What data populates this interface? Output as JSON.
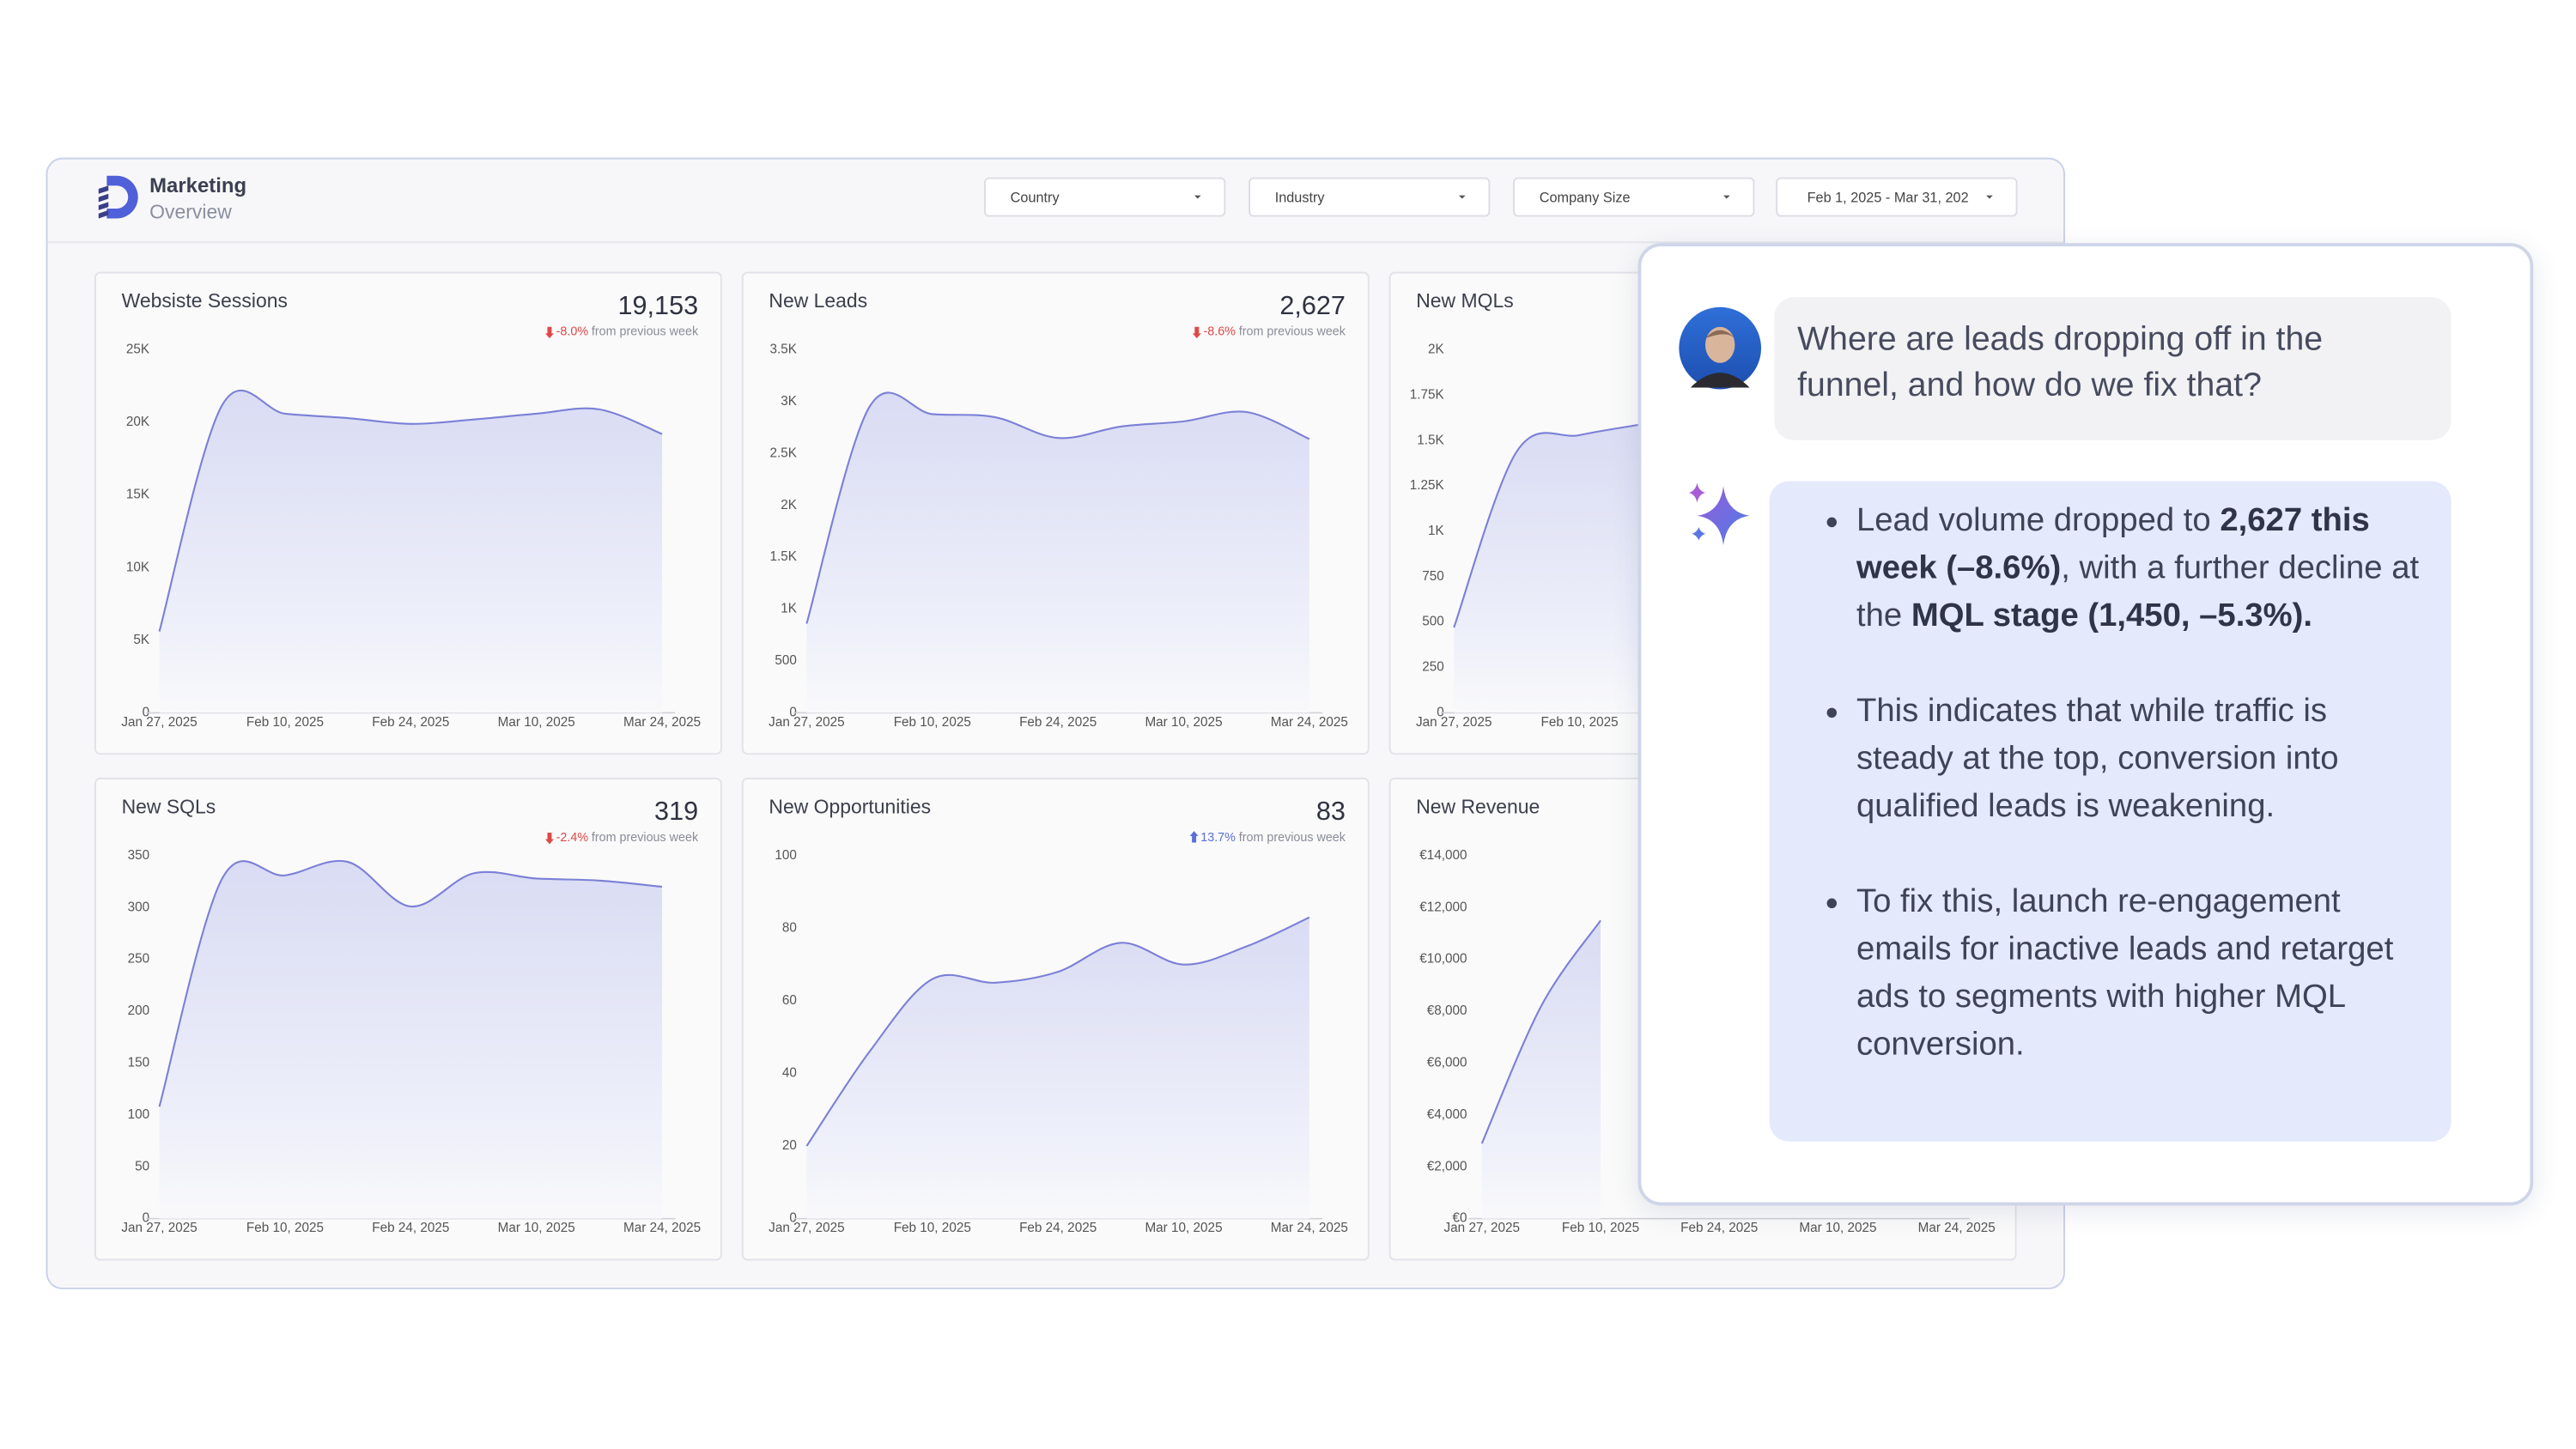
{
  "header": {
    "title": "Marketing",
    "subtitle": "Overview"
  },
  "filters": [
    "Country",
    "Industry",
    "Company Size",
    "Feb 1, 2025 - Mar 31, 202"
  ],
  "chart_data": [
    {
      "type": "line",
      "title": "Websiste Sessions",
      "kpi": {
        "value": 19153,
        "label": "19,153"
      },
      "delta": {
        "value": -8.0,
        "label": "-8.0%"
      },
      "delta_note": "from previous week",
      "categories": [
        "Jan 27, 2025",
        null,
        "Feb 10, 2025",
        null,
        "Feb 24, 2025",
        null,
        "Mar 10, 2025",
        null,
        "Mar 24, 2025"
      ],
      "values": [
        5600,
        21200,
        20600,
        20300,
        19900,
        20200,
        20600,
        20900,
        19200
      ],
      "color": "#7b80d6",
      "ylim": [
        0,
        25000
      ],
      "yticks": [
        0,
        {
          "value": 5000,
          "label": "5K"
        },
        {
          "value": 10000,
          "label": "10K"
        },
        {
          "value": 15000,
          "label": "15K"
        },
        {
          "value": 20000,
          "label": "20K"
        },
        {
          "value": 25000,
          "label": "25K"
        }
      ]
    },
    {
      "type": "line",
      "title": "New Leads",
      "kpi": {
        "value": 2627,
        "label": "2,627"
      },
      "delta": {
        "value": -8.6,
        "label": "-8.6%"
      },
      "delta_note": "from previous week",
      "categories": [
        "Jan 27, 2025",
        null,
        "Feb 10, 2025",
        null,
        "Feb 24, 2025",
        null,
        "Mar 10, 2025",
        null,
        "Mar 24, 2025"
      ],
      "values": [
        860,
        2950,
        2880,
        2850,
        2650,
        2760,
        2810,
        2900,
        2640
      ],
      "color": "#7b80d6",
      "ylim": [
        0,
        3500
      ],
      "yticks": [
        0,
        500,
        {
          "value": 1000,
          "label": "1K"
        },
        {
          "value": 1500,
          "label": "1.5K"
        },
        {
          "value": 2000,
          "label": "2K"
        },
        {
          "value": 2500,
          "label": "2.5K"
        },
        {
          "value": 3000,
          "label": "3K"
        },
        {
          "value": 3500,
          "label": "3.5K"
        }
      ]
    },
    {
      "type": "line",
      "title": "New MQLs",
      "categories": [
        "Jan 27, 2025",
        null,
        "Feb 10, 2025",
        null,
        null,
        null,
        null,
        null,
        null
      ],
      "values": [
        470,
        1440,
        1530,
        1590,
        null,
        null,
        null,
        null,
        null
      ],
      "color": "#7b80d6",
      "ylim": [
        0,
        2000
      ],
      "yticks": [
        0,
        250,
        500,
        750,
        {
          "value": 1000,
          "label": "1K"
        },
        {
          "value": 1250,
          "label": "1.25K"
        },
        {
          "value": 1500,
          "label": "1.5K"
        },
        {
          "value": 1750,
          "label": "1.75K"
        },
        {
          "value": 2000,
          "label": "2K"
        }
      ]
    },
    {
      "type": "line",
      "title": "New SQLs",
      "kpi": {
        "value": 319,
        "label": "319"
      },
      "delta": {
        "value": -2.4,
        "label": "-2.4%"
      },
      "delta_note": "from previous week",
      "categories": [
        "Jan 27, 2025",
        null,
        "Feb 10, 2025",
        null,
        "Feb 24, 2025",
        null,
        "Mar 10, 2025",
        null,
        "Mar 24, 2025"
      ],
      "values": [
        108,
        328,
        331,
        344,
        301,
        333,
        328,
        326,
        320
      ],
      "color": "#7b80d6",
      "ylim": [
        0,
        350
      ],
      "yticks": [
        0,
        50,
        100,
        150,
        200,
        250,
        300,
        350
      ]
    },
    {
      "type": "line",
      "title": "New Opportunities",
      "kpi": {
        "value": 83,
        "label": "83"
      },
      "delta": {
        "value": 13.7,
        "label": "13.7%"
      },
      "delta_note": "from previous week",
      "categories": [
        "Jan 27, 2025",
        null,
        "Feb 10, 2025",
        null,
        "Feb 24, 2025",
        null,
        "Mar 10, 2025",
        null,
        "Mar 24, 2025"
      ],
      "values": [
        20,
        46,
        66,
        65,
        68,
        76,
        70,
        75,
        83
      ],
      "color": "#7b80d6",
      "ylim": [
        0,
        100
      ],
      "yticks": [
        0,
        20,
        40,
        60,
        80,
        100
      ]
    },
    {
      "type": "line",
      "title": "New Revenue",
      "categories": [
        "Jan 27, 2025",
        null,
        "Feb 10, 2025",
        null,
        "Feb 24, 2025",
        null,
        "Mar 10, 2025",
        null,
        "Mar 24, 2025"
      ],
      "values": [
        2900,
        8200,
        11500,
        null,
        null,
        null,
        null,
        null,
        null
      ],
      "color": "#7b80d6",
      "ylim": [
        0,
        14000
      ],
      "yticks": [
        {
          "value": 0,
          "label": "€0"
        },
        {
          "value": 2000,
          "label": "€2,000"
        },
        {
          "value": 4000,
          "label": "€4,000"
        },
        {
          "value": 6000,
          "label": "€6,000"
        },
        {
          "value": 8000,
          "label": "€8,000"
        },
        {
          "value": 10000,
          "label": "€10,000"
        },
        {
          "value": 12000,
          "label": "€12,000"
        },
        {
          "value": 14000,
          "label": "€14,000"
        }
      ]
    }
  ],
  "chat": {
    "question": "Where are leads dropping off in the funnel, and how do we fix that?",
    "answer": [
      [
        {
          "text": "Lead volume dropped to ",
          "bold": false
        },
        {
          "text": "2,627 this week (–8.6%)",
          "bold": true
        },
        {
          "text": ", with a further decline at the ",
          "bold": false
        },
        {
          "text": "MQL stage (1,450, –5.3%).",
          "bold": true
        }
      ],
      [
        {
          "text": "This indicates that while traffic is steady at the top, conversion into qualified leads is weakening.",
          "bold": false
        }
      ],
      [
        {
          "text": "To fix this, launch re-engagement emails for inactive leads and retarget ads to segments with higher MQL conversion.",
          "bold": false
        }
      ]
    ]
  }
}
